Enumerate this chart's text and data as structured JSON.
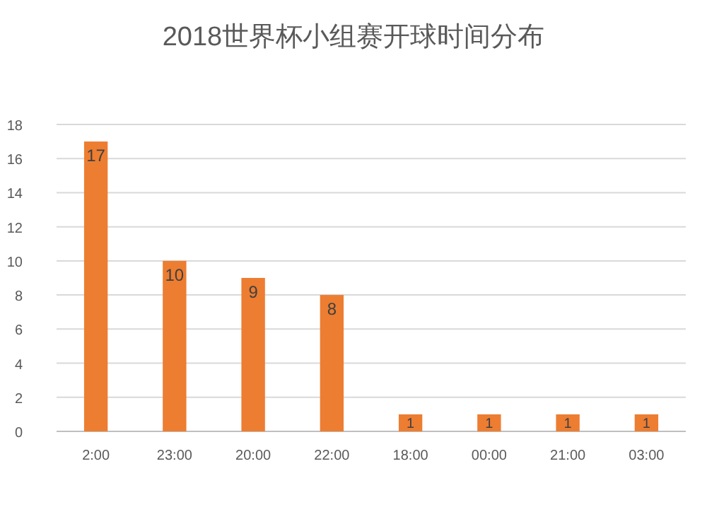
{
  "chart_data": {
    "type": "bar",
    "title": "2018世界杯小组赛开球时间分布",
    "categories": [
      "2:00",
      "23:00",
      "20:00",
      "22:00",
      "18:00",
      "00:00",
      "21:00",
      "03:00"
    ],
    "values": [
      17,
      10,
      9,
      8,
      1,
      1,
      1,
      1
    ],
    "color": "#ed7d31",
    "ylim": [
      0,
      18
    ],
    "yticks": [
      0,
      2,
      4,
      6,
      8,
      10,
      12,
      14,
      16,
      18
    ],
    "grid": "y",
    "data_labels": true
  }
}
